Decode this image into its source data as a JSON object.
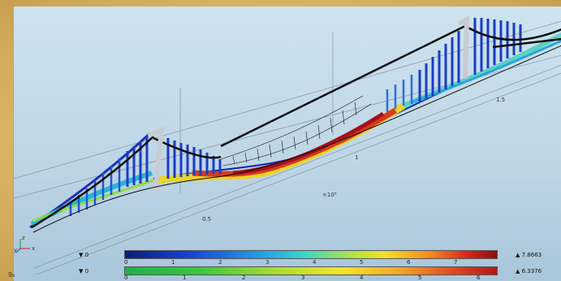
{
  "scene": {
    "axis_labels": {
      "x": "x",
      "y": "y",
      "z": "z"
    },
    "scale_label": "×10³",
    "grid_labels": [
      "0.5",
      "1",
      "1.5"
    ]
  },
  "legend": {
    "rows": [
      {
        "left_marker": "▼ 0",
        "right_marker": "▲ 7.8663",
        "ticks": [
          "0",
          "1",
          "2",
          "3",
          "4",
          "5",
          "6",
          "7"
        ]
      },
      {
        "left_marker": "▼ 0",
        "right_marker": "▲ 6.3376",
        "ticks": [
          "0",
          "1",
          "2",
          "3",
          "4",
          "5",
          "6"
        ]
      }
    ]
  },
  "corner_text": "9₀"
}
